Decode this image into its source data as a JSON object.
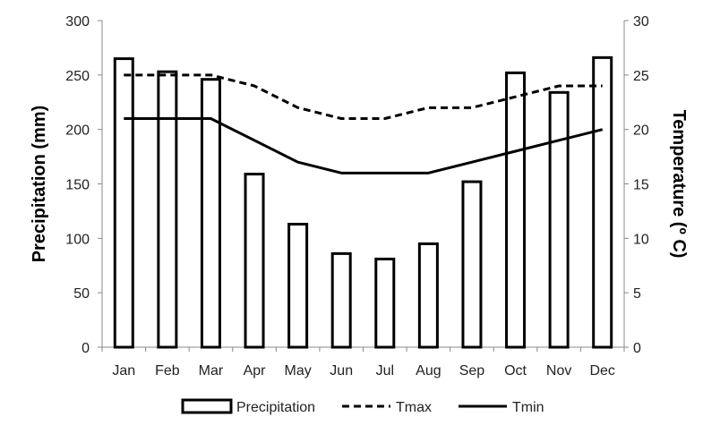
{
  "chart_data": {
    "type": "bar",
    "categories": [
      "Jan",
      "Feb",
      "Mar",
      "Apr",
      "May",
      "Jun",
      "Jul",
      "Aug",
      "Sep",
      "Oct",
      "Nov",
      "Dec"
    ],
    "series": [
      {
        "name": "Precipitation",
        "type": "bar",
        "axis": "left",
        "values": [
          265,
          253,
          246,
          159,
          113,
          86,
          81,
          95,
          152,
          252,
          234,
          266
        ]
      },
      {
        "name": "Tmax",
        "type": "line",
        "style": "dashed",
        "axis": "right",
        "values": [
          25,
          25,
          25,
          24,
          22,
          21,
          21,
          22,
          22,
          23,
          24,
          24
        ]
      },
      {
        "name": "Tmin",
        "type": "line",
        "style": "solid",
        "axis": "right",
        "values": [
          21,
          21,
          21,
          19,
          17,
          16,
          16,
          16,
          17,
          18,
          19,
          20
        ]
      }
    ],
    "ylabel": "Precipitation (mm)",
    "y2label": "Temperature (º C)",
    "ylim": [
      0,
      300
    ],
    "y2lim": [
      0,
      30
    ],
    "yticks": [
      "0",
      "50",
      "100",
      "150",
      "200",
      "250",
      "300"
    ],
    "y2ticks": [
      "0",
      "5",
      "10",
      "15",
      "20",
      "25",
      "30"
    ],
    "grid": false,
    "legend_position": "bottom"
  }
}
